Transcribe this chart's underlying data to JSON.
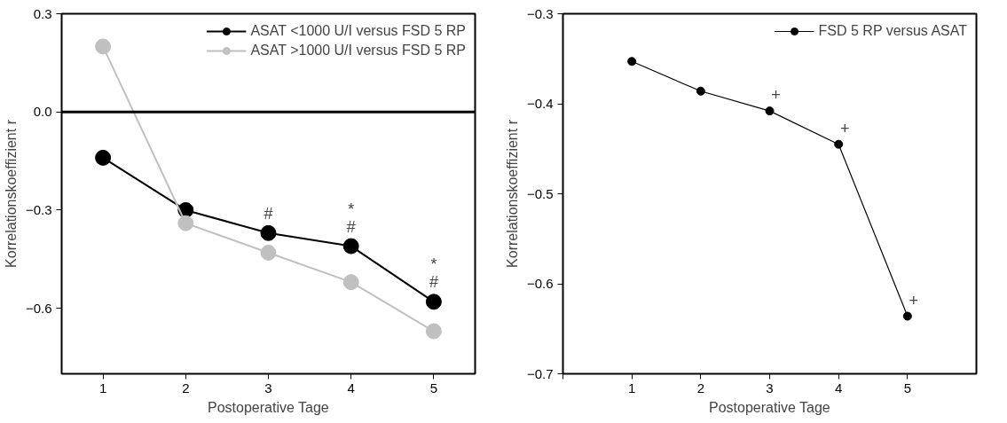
{
  "chart_data": [
    {
      "type": "line",
      "xlabel": "Postoperative Tage",
      "ylabel": "Korrelationskoeffizient r",
      "x": [
        1,
        2,
        3,
        4,
        5
      ],
      "series": [
        {
          "name": "ASAT <1000 U/I versus FSD 5 RP",
          "color": "#000000",
          "values": [
            -0.14,
            -0.3,
            -0.37,
            -0.41,
            -0.58
          ]
        },
        {
          "name": "ASAT >1000 U/I versus FSD 5 RP",
          "color": "#c0c0c0",
          "values": [
            0.2,
            -0.34,
            -0.43,
            -0.52,
            -0.67
          ]
        }
      ],
      "xlim": [
        0.5,
        5.5
      ],
      "xticks": [
        1,
        2,
        3,
        4,
        5
      ],
      "ylim": [
        -0.8,
        0.3
      ],
      "yticks": [
        0.3,
        {
          "value": 0,
          "label": "0.0"
        },
        -0.3,
        -0.6
      ],
      "ref_lines": [
        {
          "axis": "y",
          "value": 0,
          "color": "#000000"
        }
      ],
      "annotations": [
        {
          "text": "#",
          "x": 3,
          "y": -0.37
        },
        {
          "text": "#",
          "x": 4,
          "y": -0.41
        },
        {
          "text": "*",
          "x": 4,
          "y": -0.41
        },
        {
          "text": "#",
          "x": 5,
          "y": -0.58
        },
        {
          "text": "*",
          "x": 5,
          "y": -0.58
        }
      ],
      "marker": "circle",
      "line_style": "solid",
      "grid": false,
      "legend": "top right"
    },
    {
      "type": "line",
      "xlabel": "Postoperative Tage",
      "ylabel": "Korrelationskoeffizient r",
      "x": [
        1,
        2,
        3,
        4,
        5
      ],
      "series": [
        {
          "name": "FSD 5 RP versus ASAT",
          "color": "#000000",
          "values": [
            -0.353,
            -0.386,
            -0.408,
            -0.445,
            -0.636
          ]
        }
      ],
      "xlim": [
        0,
        6
      ],
      "xticks": [
        {
          "value": 0,
          "label": null
        },
        1,
        2,
        3,
        4,
        5
      ],
      "ylim": [
        -0.7,
        -0.3
      ],
      "yticks": [
        -0.3,
        -0.4,
        -0.5,
        -0.6,
        -0.7
      ],
      "annotations": [
        {
          "text": "+",
          "x": 3,
          "y": -0.408
        },
        {
          "text": "+",
          "x": 4,
          "y": -0.445
        },
        {
          "text": "+",
          "x": 5,
          "y": -0.636
        }
      ],
      "marker": "circle",
      "line_style": "solid",
      "grid": false,
      "legend": "top right"
    }
  ]
}
